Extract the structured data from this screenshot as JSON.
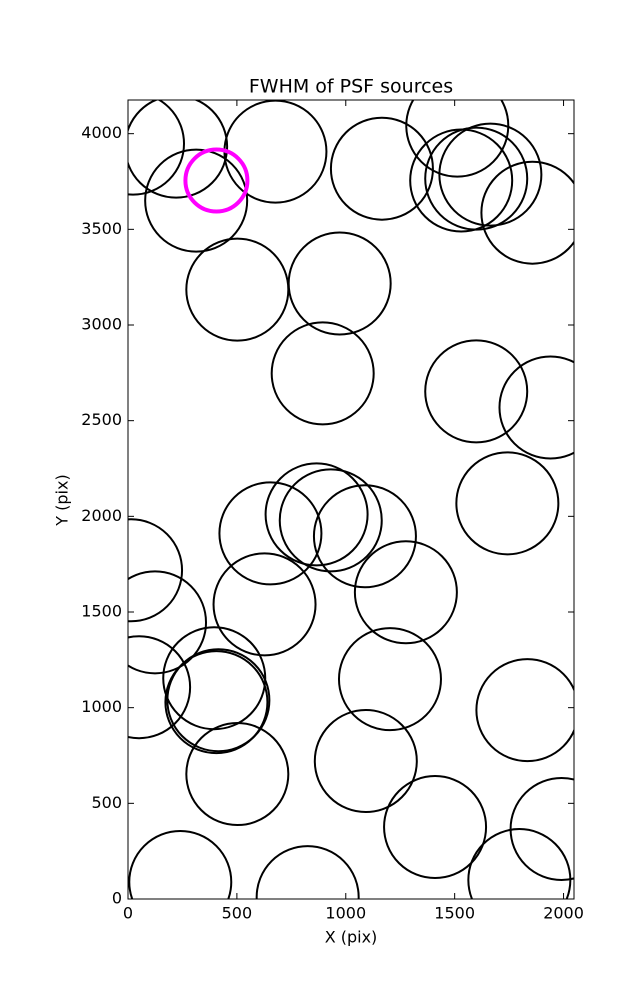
{
  "chart_data": {
    "type": "scatter",
    "title": "FWHM of PSF sources",
    "x_label": "X (pix)",
    "y_label": "Y (pix)",
    "xlim": [
      0,
      2048
    ],
    "ylim": [
      0,
      4176
    ],
    "xticks": [
      0,
      500,
      1000,
      1500,
      2000
    ],
    "yticks": [
      0,
      500,
      1000,
      1500,
      2000,
      2500,
      3000,
      3500,
      4000
    ],
    "grid": false,
    "series": [
      {
        "color": "#000000",
        "x": [
          23,
          221,
          677,
          1166,
          1512,
          1530,
          1599,
          1664,
          1857,
          313,
          502,
          972,
          894,
          1599,
          1940,
          1742,
          654,
          866,
          931,
          1088,
          1276,
          14,
          124,
          627,
          51,
          396,
          415,
          406,
          1203,
          1834,
          502,
          1092,
          1410,
          1991,
          1797,
          240,
          825
        ],
        "values": [
          3948,
          3932,
          3906,
          3817,
          4042,
          3755,
          3765,
          3786,
          3587,
          3650,
          3185,
          3217,
          2747,
          2653,
          2569,
          2068,
          1911,
          2010,
          1979,
          1896,
          1603,
          1718,
          1446,
          1540,
          1107,
          1154,
          1039,
          1029,
          1149,
          987,
          653,
          721,
          376,
          366,
          99,
          89,
          10
        ]
      },
      {
        "color": "#ff00ff",
        "x": [
          406
        ],
        "values": [
          3755
        ]
      }
    ]
  }
}
